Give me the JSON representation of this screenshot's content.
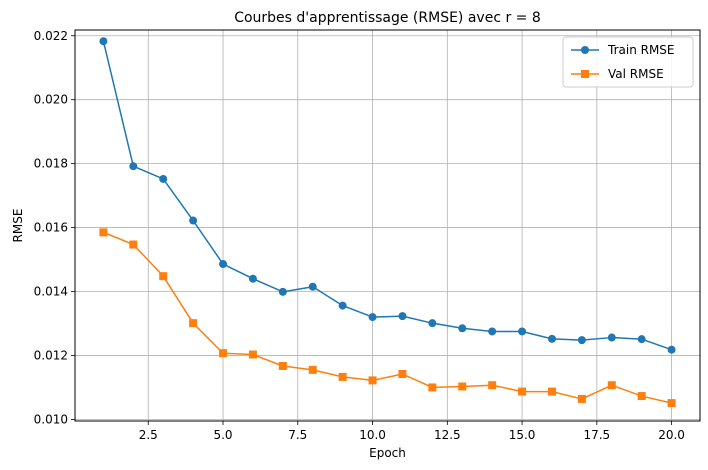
{
  "chart_data": {
    "type": "line",
    "title": "Courbes d'apprentissage (RMSE) avec r = 8",
    "xlabel": "Epoch",
    "ylabel": "RMSE",
    "xlim": [
      0.05,
      20.95
    ],
    "ylim": [
      0.00995,
      0.02218
    ],
    "x_ticks": [
      2.5,
      5.0,
      7.5,
      10.0,
      12.5,
      15.0,
      17.5,
      20.0
    ],
    "x_tick_labels": [
      "2.5",
      "5.0",
      "7.5",
      "10.0",
      "12.5",
      "15.0",
      "17.5",
      "20.0"
    ],
    "y_ticks": [
      0.01,
      0.012,
      0.014,
      0.016,
      0.018,
      0.02,
      0.022
    ],
    "y_tick_labels": [
      "0.010",
      "0.012",
      "0.014",
      "0.016",
      "0.018",
      "0.020",
      "0.022"
    ],
    "grid": true,
    "legend_position": "top-right",
    "x": [
      1,
      2,
      3,
      4,
      5,
      6,
      7,
      8,
      9,
      10,
      11,
      12,
      13,
      14,
      15,
      16,
      17,
      18,
      19,
      20
    ],
    "series": [
      {
        "name": "Train RMSE",
        "color": "#1f77b4",
        "marker": "circle",
        "values": [
          0.02183,
          0.01792,
          0.01752,
          0.01622,
          0.01486,
          0.0144,
          0.01399,
          0.01415,
          0.01356,
          0.0132,
          0.01323,
          0.01301,
          0.01285,
          0.01275,
          0.01275,
          0.01252,
          0.01248,
          0.01256,
          0.01251,
          0.01218
        ]
      },
      {
        "name": "Val RMSE",
        "color": "#ff7f0e",
        "marker": "square",
        "values": [
          0.01585,
          0.01547,
          0.01448,
          0.01301,
          0.01207,
          0.01203,
          0.01167,
          0.01155,
          0.01133,
          0.01122,
          0.01142,
          0.011,
          0.01103,
          0.01107,
          0.01087,
          0.01087,
          0.01064,
          0.01107,
          0.01073,
          0.01051
        ]
      }
    ]
  }
}
